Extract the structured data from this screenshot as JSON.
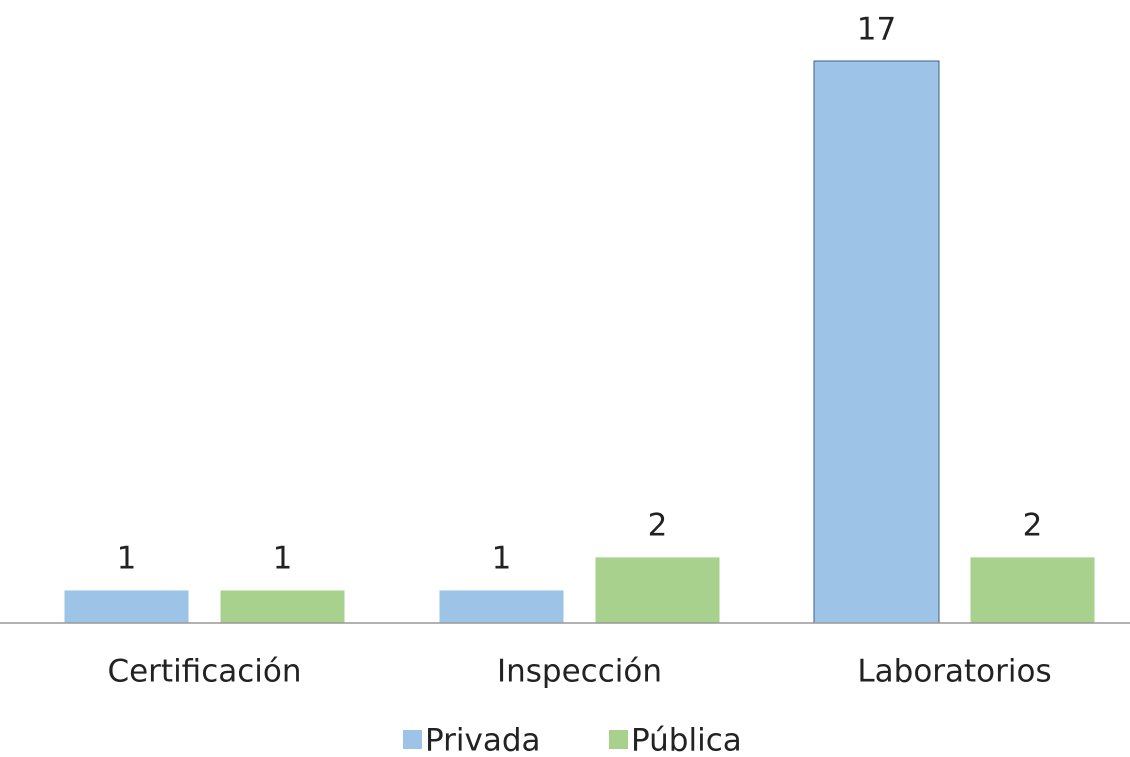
{
  "chart_data": {
    "type": "bar",
    "categories": [
      "Certificación",
      "Inspección",
      "Laboratorios"
    ],
    "series": [
      {
        "name": "Privada",
        "color": "#9dc3e6",
        "values": [
          1,
          1,
          17
        ]
      },
      {
        "name": "Pública",
        "color": "#a9d18e",
        "values": [
          1,
          2,
          2
        ]
      }
    ]
  }
}
